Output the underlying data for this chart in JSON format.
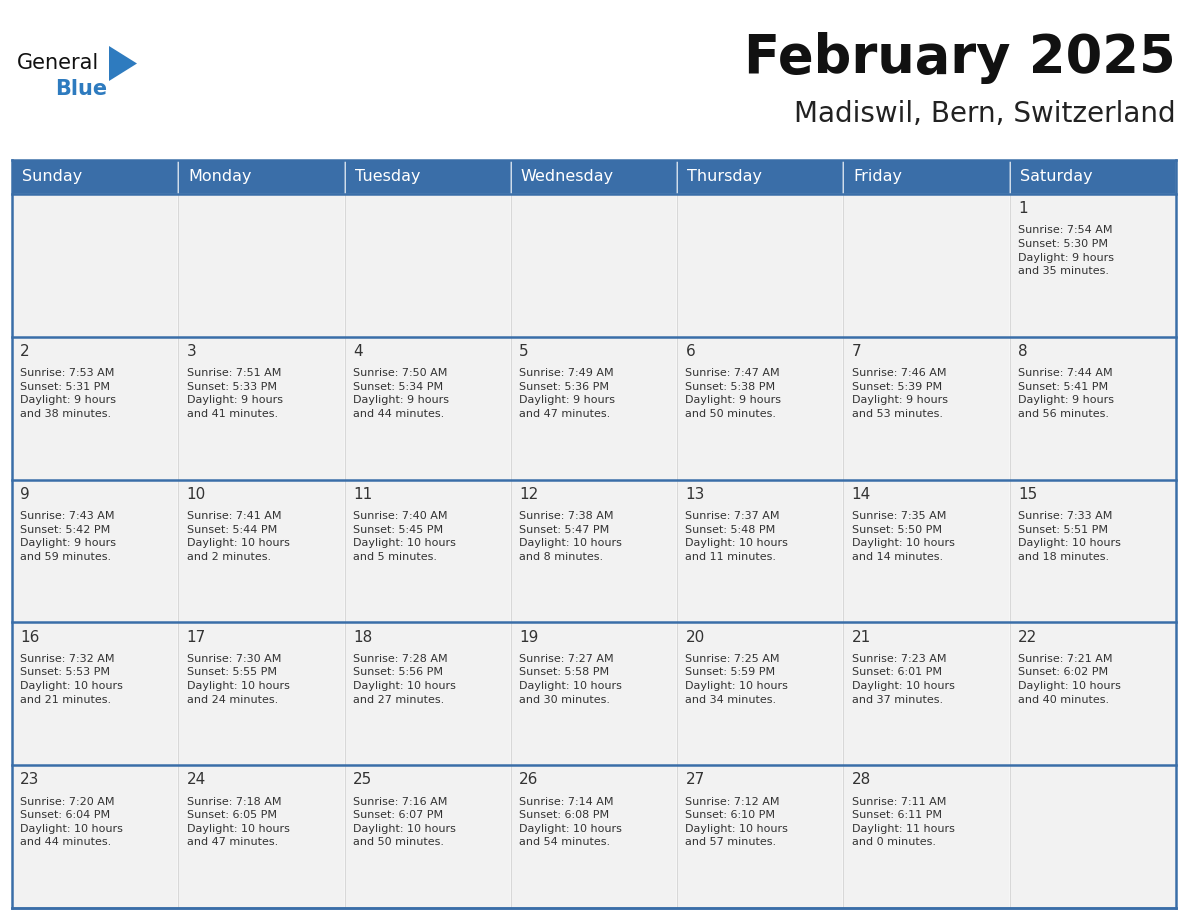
{
  "title": "February 2025",
  "subtitle": "Madiswil, Bern, Switzerland",
  "header_color": "#3a6ea8",
  "header_text_color": "#ffffff",
  "cell_bg": "#f2f2f2",
  "cell_bg_white": "#ffffff",
  "border_color": "#3a6ea8",
  "day_number_color": "#333333",
  "text_color": "#333333",
  "days_of_week": [
    "Sunday",
    "Monday",
    "Tuesday",
    "Wednesday",
    "Thursday",
    "Friday",
    "Saturday"
  ],
  "weeks": [
    [
      {
        "day": null,
        "info": null
      },
      {
        "day": null,
        "info": null
      },
      {
        "day": null,
        "info": null
      },
      {
        "day": null,
        "info": null
      },
      {
        "day": null,
        "info": null
      },
      {
        "day": null,
        "info": null
      },
      {
        "day": 1,
        "info": "Sunrise: 7:54 AM\nSunset: 5:30 PM\nDaylight: 9 hours\nand 35 minutes."
      }
    ],
    [
      {
        "day": 2,
        "info": "Sunrise: 7:53 AM\nSunset: 5:31 PM\nDaylight: 9 hours\nand 38 minutes."
      },
      {
        "day": 3,
        "info": "Sunrise: 7:51 AM\nSunset: 5:33 PM\nDaylight: 9 hours\nand 41 minutes."
      },
      {
        "day": 4,
        "info": "Sunrise: 7:50 AM\nSunset: 5:34 PM\nDaylight: 9 hours\nand 44 minutes."
      },
      {
        "day": 5,
        "info": "Sunrise: 7:49 AM\nSunset: 5:36 PM\nDaylight: 9 hours\nand 47 minutes."
      },
      {
        "day": 6,
        "info": "Sunrise: 7:47 AM\nSunset: 5:38 PM\nDaylight: 9 hours\nand 50 minutes."
      },
      {
        "day": 7,
        "info": "Sunrise: 7:46 AM\nSunset: 5:39 PM\nDaylight: 9 hours\nand 53 minutes."
      },
      {
        "day": 8,
        "info": "Sunrise: 7:44 AM\nSunset: 5:41 PM\nDaylight: 9 hours\nand 56 minutes."
      }
    ],
    [
      {
        "day": 9,
        "info": "Sunrise: 7:43 AM\nSunset: 5:42 PM\nDaylight: 9 hours\nand 59 minutes."
      },
      {
        "day": 10,
        "info": "Sunrise: 7:41 AM\nSunset: 5:44 PM\nDaylight: 10 hours\nand 2 minutes."
      },
      {
        "day": 11,
        "info": "Sunrise: 7:40 AM\nSunset: 5:45 PM\nDaylight: 10 hours\nand 5 minutes."
      },
      {
        "day": 12,
        "info": "Sunrise: 7:38 AM\nSunset: 5:47 PM\nDaylight: 10 hours\nand 8 minutes."
      },
      {
        "day": 13,
        "info": "Sunrise: 7:37 AM\nSunset: 5:48 PM\nDaylight: 10 hours\nand 11 minutes."
      },
      {
        "day": 14,
        "info": "Sunrise: 7:35 AM\nSunset: 5:50 PM\nDaylight: 10 hours\nand 14 minutes."
      },
      {
        "day": 15,
        "info": "Sunrise: 7:33 AM\nSunset: 5:51 PM\nDaylight: 10 hours\nand 18 minutes."
      }
    ],
    [
      {
        "day": 16,
        "info": "Sunrise: 7:32 AM\nSunset: 5:53 PM\nDaylight: 10 hours\nand 21 minutes."
      },
      {
        "day": 17,
        "info": "Sunrise: 7:30 AM\nSunset: 5:55 PM\nDaylight: 10 hours\nand 24 minutes."
      },
      {
        "day": 18,
        "info": "Sunrise: 7:28 AM\nSunset: 5:56 PM\nDaylight: 10 hours\nand 27 minutes."
      },
      {
        "day": 19,
        "info": "Sunrise: 7:27 AM\nSunset: 5:58 PM\nDaylight: 10 hours\nand 30 minutes."
      },
      {
        "day": 20,
        "info": "Sunrise: 7:25 AM\nSunset: 5:59 PM\nDaylight: 10 hours\nand 34 minutes."
      },
      {
        "day": 21,
        "info": "Sunrise: 7:23 AM\nSunset: 6:01 PM\nDaylight: 10 hours\nand 37 minutes."
      },
      {
        "day": 22,
        "info": "Sunrise: 7:21 AM\nSunset: 6:02 PM\nDaylight: 10 hours\nand 40 minutes."
      }
    ],
    [
      {
        "day": 23,
        "info": "Sunrise: 7:20 AM\nSunset: 6:04 PM\nDaylight: 10 hours\nand 44 minutes."
      },
      {
        "day": 24,
        "info": "Sunrise: 7:18 AM\nSunset: 6:05 PM\nDaylight: 10 hours\nand 47 minutes."
      },
      {
        "day": 25,
        "info": "Sunrise: 7:16 AM\nSunset: 6:07 PM\nDaylight: 10 hours\nand 50 minutes."
      },
      {
        "day": 26,
        "info": "Sunrise: 7:14 AM\nSunset: 6:08 PM\nDaylight: 10 hours\nand 54 minutes."
      },
      {
        "day": 27,
        "info": "Sunrise: 7:12 AM\nSunset: 6:10 PM\nDaylight: 10 hours\nand 57 minutes."
      },
      {
        "day": 28,
        "info": "Sunrise: 7:11 AM\nSunset: 6:11 PM\nDaylight: 11 hours\nand 0 minutes."
      },
      {
        "day": null,
        "info": null
      }
    ]
  ],
  "logo_general_color": "#111111",
  "logo_blue_color": "#2e7bbf",
  "title_fontsize": 38,
  "subtitle_fontsize": 20,
  "header_fontsize": 11.5,
  "day_number_fontsize": 11,
  "cell_text_fontsize": 8.0,
  "fig_width": 11.88,
  "fig_height": 9.18
}
